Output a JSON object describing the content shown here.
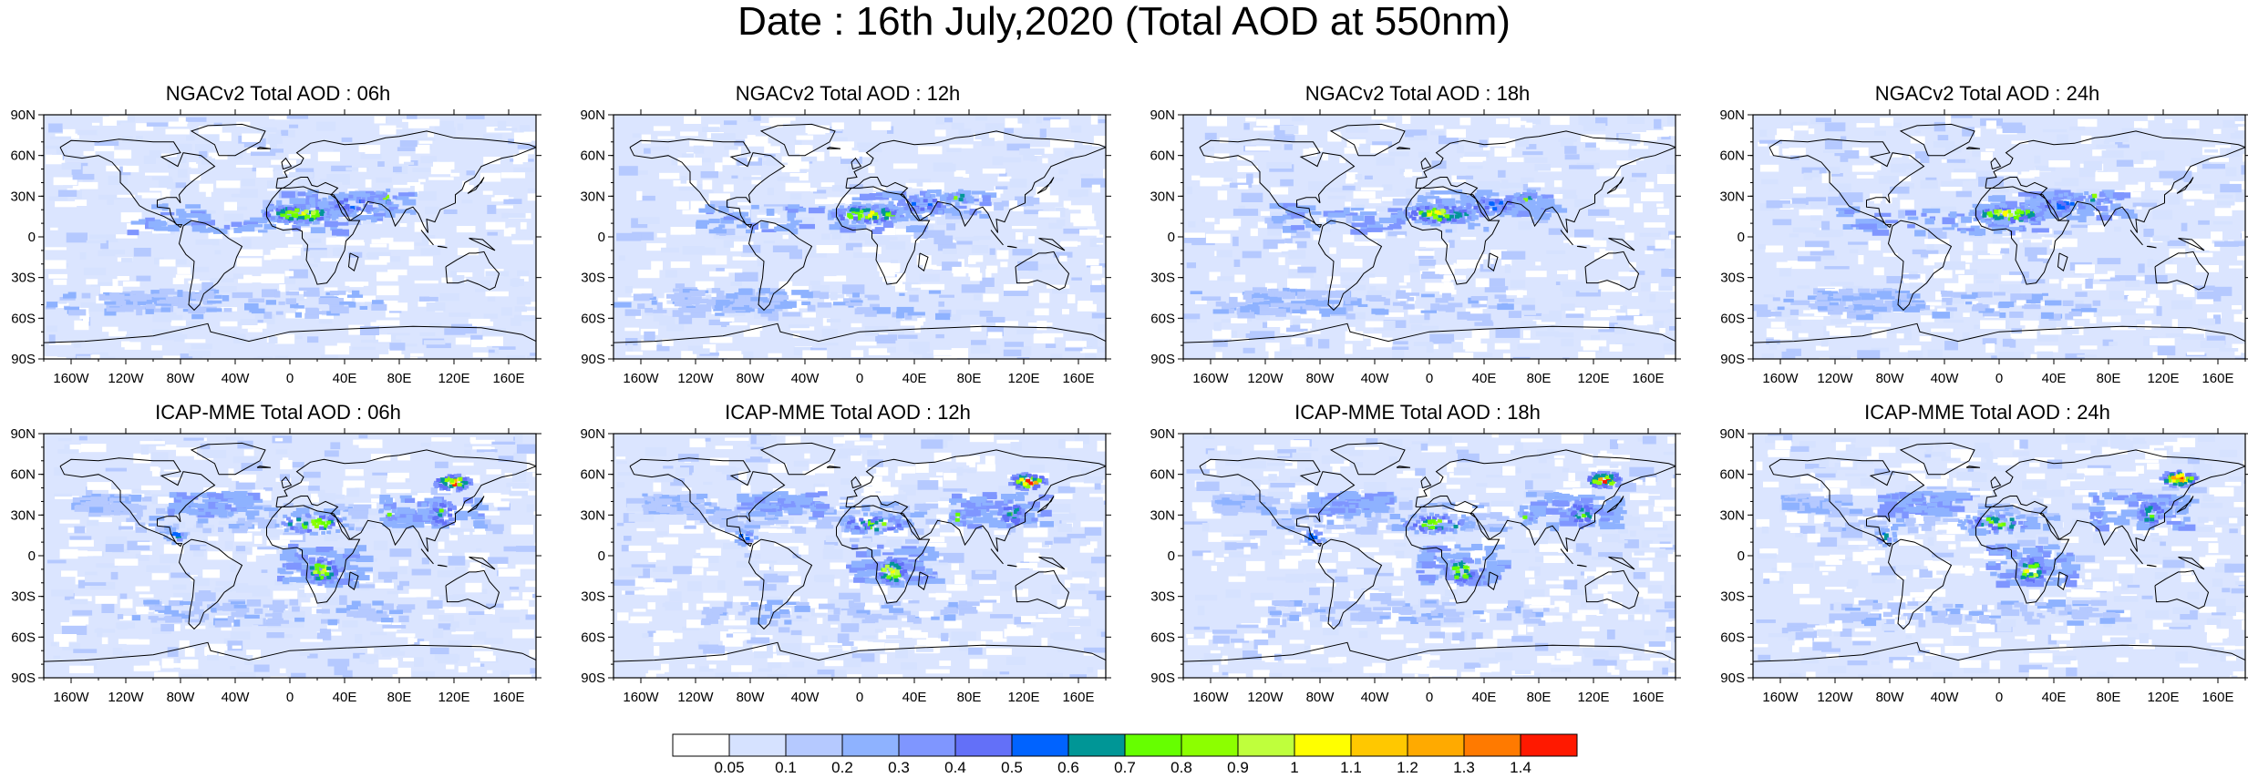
{
  "title": "Date : 16th July,2020 (Total AOD at 550nm)",
  "panels": [
    {
      "title": "NGACv2 Total AOD : 06h",
      "model": "NGACv2",
      "hour": "06h"
    },
    {
      "title": "NGACv2 Total AOD : 12h",
      "model": "NGACv2",
      "hour": "12h"
    },
    {
      "title": "NGACv2 Total AOD : 18h",
      "model": "NGACv2",
      "hour": "18h"
    },
    {
      "title": "NGACv2 Total AOD : 24h",
      "model": "NGACv2",
      "hour": "24h"
    },
    {
      "title": "ICAP-MME Total AOD : 06h",
      "model": "ICAP-MME",
      "hour": "06h"
    },
    {
      "title": "ICAP-MME Total AOD : 12h",
      "model": "ICAP-MME",
      "hour": "12h"
    },
    {
      "title": "ICAP-MME Total AOD : 18h",
      "model": "ICAP-MME",
      "hour": "18h"
    },
    {
      "title": "ICAP-MME Total AOD : 24h",
      "model": "ICAP-MME",
      "hour": "24h"
    }
  ],
  "lat_ticks": [
    "90N",
    "60N",
    "30N",
    "0",
    "30S",
    "60S",
    "90S"
  ],
  "lon_ticks": [
    "160W",
    "120W",
    "80W",
    "40W",
    "0",
    "40E",
    "80E",
    "120E",
    "160E"
  ],
  "colorbar": {
    "colors": [
      "#ffffff",
      "#d6e2ff",
      "#b5c9ff",
      "#8eb2ff",
      "#7f96ff",
      "#6370f8",
      "#0063ff",
      "#009696",
      "#66ff00",
      "#8cff00",
      "#bfff3c",
      "#ffff00",
      "#ffc800",
      "#ffaa00",
      "#ff7a00",
      "#ff1900"
    ],
    "labels": [
      "0.05",
      "0.1",
      "0.2",
      "0.3",
      "0.4",
      "0.5",
      "0.6",
      "0.7",
      "0.8",
      "0.9",
      "1",
      "1.1",
      "1.2",
      "1.3",
      "1.4"
    ]
  }
}
